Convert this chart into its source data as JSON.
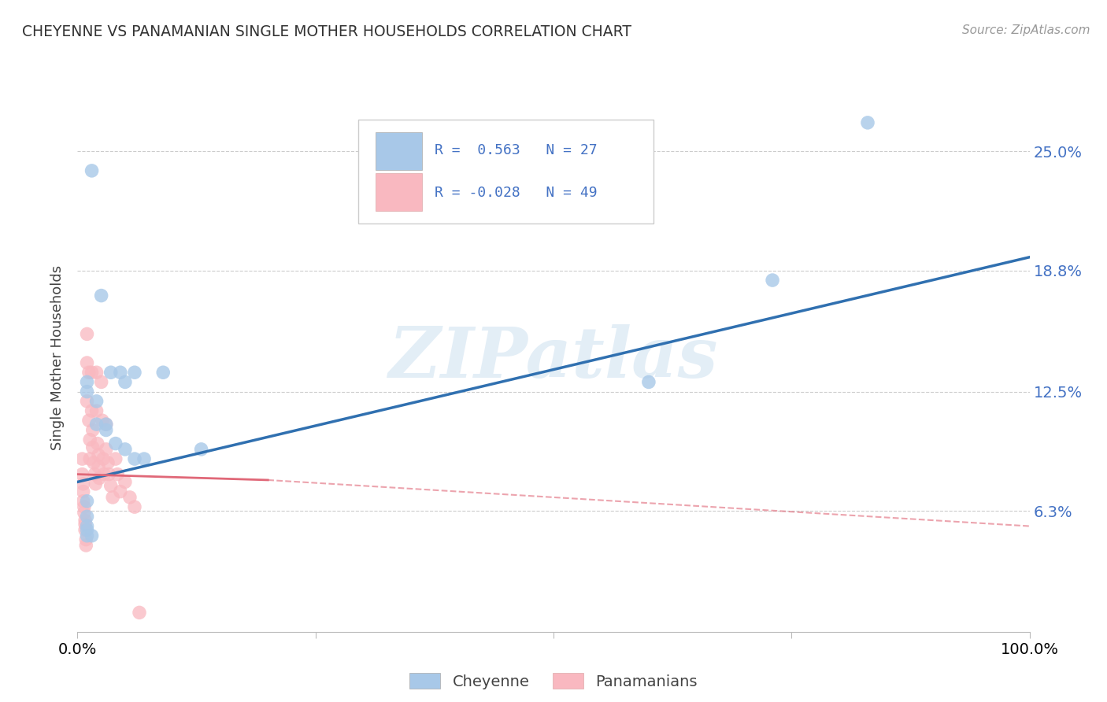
{
  "title": "CHEYENNE VS PANAMANIAN SINGLE MOTHER HOUSEHOLDS CORRELATION CHART",
  "source": "Source: ZipAtlas.com",
  "ylabel": "Single Mother Households",
  "y_tick_labels": [
    "6.3%",
    "12.5%",
    "18.8%",
    "25.0%"
  ],
  "y_tick_values": [
    0.063,
    0.125,
    0.188,
    0.25
  ],
  "x_min": 0.0,
  "x_max": 1.0,
  "y_min": 0.0,
  "y_max": 0.285,
  "legend_blue_r": "R =  0.563",
  "legend_blue_n": "N = 27",
  "legend_pink_r": "R = -0.028",
  "legend_pink_n": "N = 49",
  "blue_color": "#a8c8e8",
  "pink_color": "#f9b8c0",
  "blue_line_color": "#3070b0",
  "pink_line_color": "#e06878",
  "watermark": "ZIPatlas",
  "blue_line_x0": 0.0,
  "blue_line_y0": 0.078,
  "blue_line_x1": 1.0,
  "blue_line_y1": 0.195,
  "pink_line_solid_x0": 0.0,
  "pink_line_solid_y0": 0.082,
  "pink_line_solid_x1": 0.2,
  "pink_line_solid_y1": 0.079,
  "pink_line_dash_x0": 0.2,
  "pink_line_dash_y0": 0.079,
  "pink_line_dash_x1": 1.0,
  "pink_line_dash_y1": 0.055,
  "cheyenne_x": [
    0.015,
    0.025,
    0.035,
    0.045,
    0.05,
    0.06,
    0.01,
    0.01,
    0.02,
    0.02,
    0.03,
    0.03,
    0.04,
    0.05,
    0.06,
    0.07,
    0.09,
    0.13,
    0.6,
    0.73,
    0.83,
    0.01,
    0.01,
    0.01,
    0.01,
    0.01,
    0.015
  ],
  "cheyenne_y": [
    0.24,
    0.175,
    0.135,
    0.135,
    0.13,
    0.135,
    0.13,
    0.125,
    0.12,
    0.108,
    0.108,
    0.105,
    0.098,
    0.095,
    0.09,
    0.09,
    0.135,
    0.095,
    0.13,
    0.183,
    0.265,
    0.068,
    0.06,
    0.055,
    0.053,
    0.05,
    0.05
  ],
  "panama_x": [
    0.005,
    0.005,
    0.006,
    0.006,
    0.006,
    0.007,
    0.007,
    0.008,
    0.008,
    0.008,
    0.009,
    0.009,
    0.01,
    0.01,
    0.01,
    0.012,
    0.012,
    0.013,
    0.013,
    0.015,
    0.015,
    0.016,
    0.016,
    0.017,
    0.018,
    0.019,
    0.02,
    0.02,
    0.021,
    0.022,
    0.022,
    0.023,
    0.025,
    0.026,
    0.027,
    0.028,
    0.03,
    0.03,
    0.032,
    0.033,
    0.035,
    0.037,
    0.04,
    0.042,
    0.045,
    0.05,
    0.055,
    0.06,
    0.065
  ],
  "panama_y": [
    0.09,
    0.082,
    0.077,
    0.073,
    0.068,
    0.065,
    0.062,
    0.058,
    0.056,
    0.053,
    0.048,
    0.045,
    0.155,
    0.14,
    0.12,
    0.135,
    0.11,
    0.1,
    0.09,
    0.135,
    0.115,
    0.105,
    0.096,
    0.088,
    0.082,
    0.077,
    0.135,
    0.115,
    0.098,
    0.092,
    0.086,
    0.08,
    0.13,
    0.11,
    0.09,
    0.082,
    0.108,
    0.095,
    0.088,
    0.082,
    0.076,
    0.07,
    0.09,
    0.082,
    0.073,
    0.078,
    0.07,
    0.065,
    0.01
  ]
}
